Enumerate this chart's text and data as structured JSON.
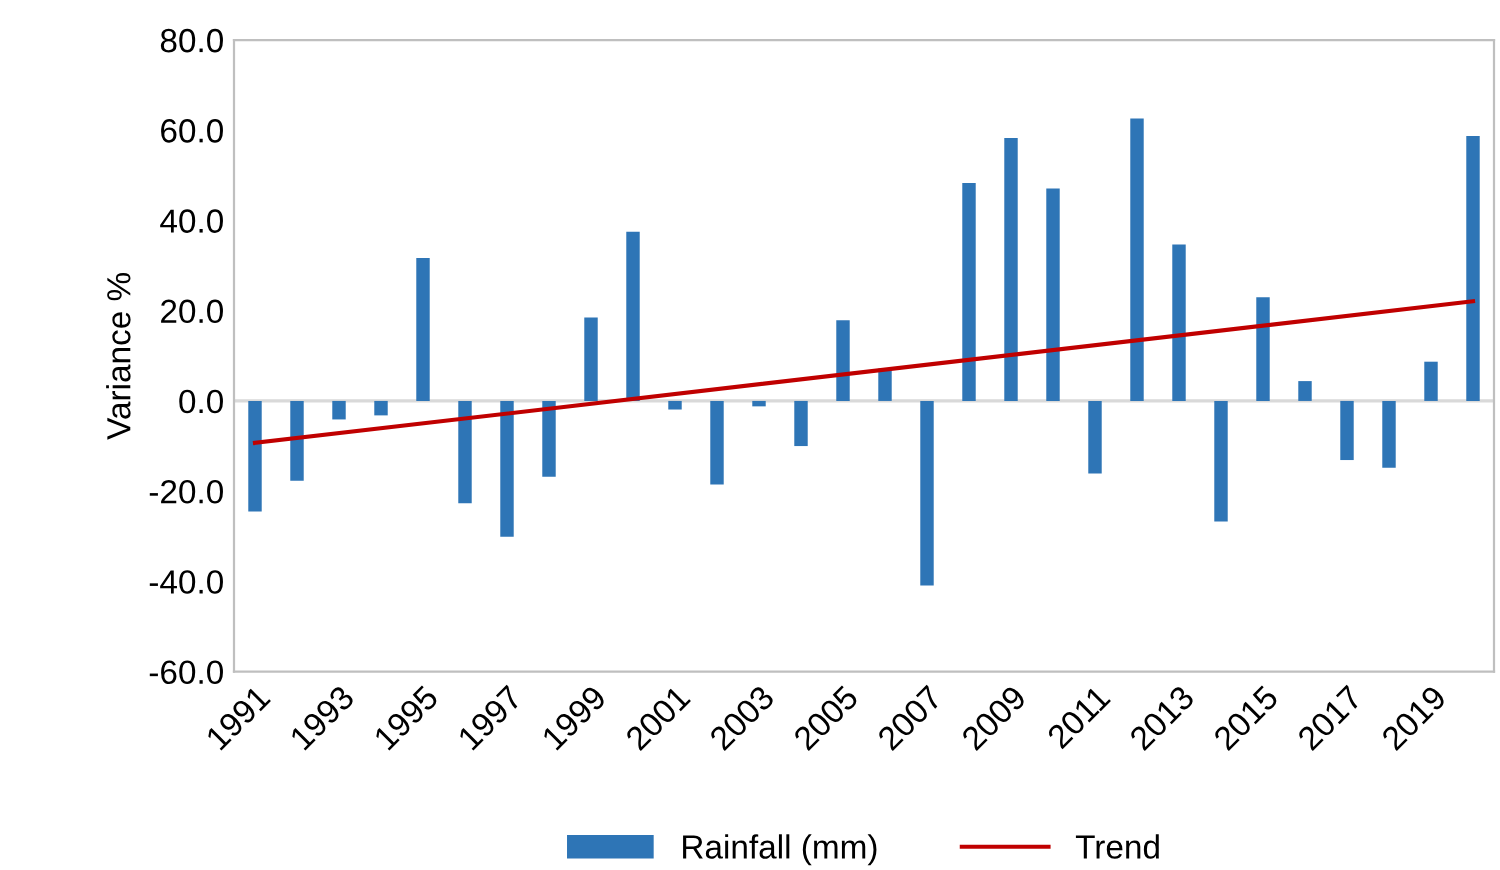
{
  "chart_data": {
    "type": "bar",
    "ylabel": "Variance %",
    "categories": [
      "1991",
      null,
      "1993",
      null,
      "1995",
      null,
      "1997",
      null,
      "1999",
      null,
      "2001",
      null,
      "2003",
      null,
      "2005",
      null,
      "2007",
      null,
      "2009",
      null,
      "2011",
      null,
      "2013",
      null,
      "2015",
      null,
      "2017",
      null,
      "2019",
      null
    ],
    "series": [
      {
        "name": "Rainfall (mm)",
        "color": "#2e75b6",
        "values": [
          -24.5,
          -17.7,
          -4.1,
          -3.2,
          31.7,
          -22.7,
          -30.1,
          -16.8,
          18.5,
          37.5,
          -1.9,
          -18.5,
          -1.2,
          -10.0,
          17.9,
          7.2,
          -40.9,
          48.3,
          58.3,
          47.1,
          -16.1,
          62.6,
          34.7,
          -26.7,
          23.0,
          4.4,
          -13.1,
          -14.8,
          8.7,
          58.7
        ]
      },
      {
        "name": "Trend",
        "type": "line",
        "color": "#c00000",
        "line_style": "solid",
        "values": [
          -9.3,
          null,
          null,
          null,
          null,
          null,
          null,
          null,
          null,
          null,
          null,
          null,
          null,
          null,
          null,
          null,
          null,
          null,
          null,
          null,
          null,
          null,
          null,
          null,
          null,
          null,
          null,
          null,
          null,
          22.1
        ]
      }
    ],
    "ylim": [
      -60,
      80
    ],
    "yticks": [
      {
        "value": -60,
        "label": "-60.0"
      },
      {
        "value": -40,
        "label": "-40.0"
      },
      {
        "value": -20,
        "label": "-20.0"
      },
      {
        "value": 0,
        "label": "0.0"
      },
      {
        "value": 20,
        "label": "20.0"
      },
      {
        "value": 40,
        "label": "40.0"
      },
      {
        "value": 60,
        "label": "60.0"
      },
      {
        "value": 80,
        "label": "80.0"
      }
    ],
    "ref_lines": [
      {
        "axis": "y",
        "value": 0,
        "color": "#d9d9d9"
      }
    ],
    "grid": false,
    "legend": "bottom",
    "marker": "none"
  }
}
